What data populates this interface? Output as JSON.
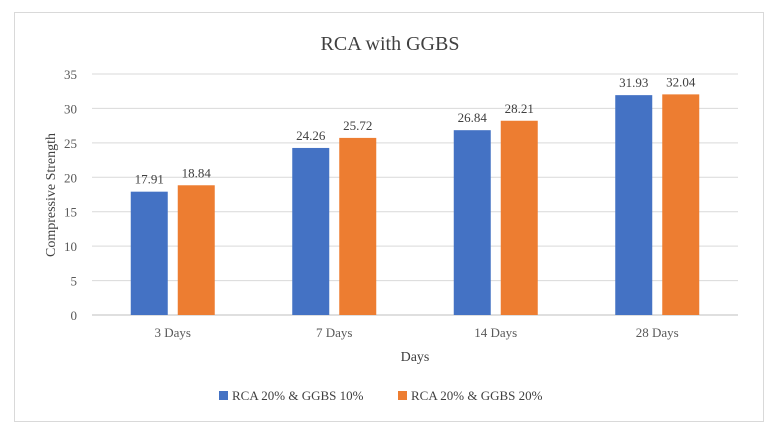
{
  "chart_data": {
    "type": "bar",
    "title": "RCA with GGBS",
    "xlabel": "Days",
    "ylabel": "Compressive Strength",
    "categories": [
      "3 Days",
      "7 Days",
      "14 Days",
      "28 Days"
    ],
    "series": [
      {
        "name": "RCA 20% & GGBS 10%",
        "color": "#4472c4",
        "values": [
          17.91,
          24.26,
          26.84,
          31.93
        ]
      },
      {
        "name": "RCA 20% & GGBS 20%",
        "color": "#ed7d31",
        "values": [
          18.84,
          25.72,
          28.21,
          32.04
        ]
      }
    ],
    "ylim": [
      0,
      35
    ],
    "yticks": [
      0,
      5,
      10,
      15,
      20,
      25,
      30,
      35
    ],
    "grid": true,
    "legend": "bottom",
    "data_labels": true
  }
}
